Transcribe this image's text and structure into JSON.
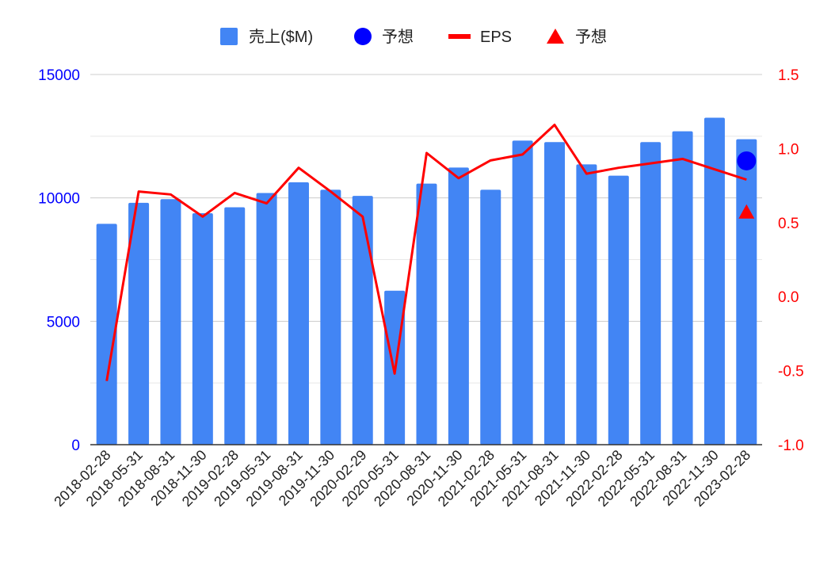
{
  "chart_data": {
    "type": "bar",
    "legend": {
      "position": "top",
      "entries": [
        {
          "label": "売上($M)",
          "marker": "square",
          "color": "#4285F4"
        },
        {
          "label": "予想",
          "marker": "circle",
          "color": "#0000FF"
        },
        {
          "label": "EPS",
          "marker": "line",
          "color": "#FF0000"
        },
        {
          "label": "予想",
          "marker": "triangle",
          "color": "#FF0000"
        }
      ]
    },
    "categories": [
      "2018-02-28",
      "2018-05-31",
      "2018-08-31",
      "2018-11-30",
      "2019-02-28",
      "2019-05-31",
      "2019-08-31",
      "2019-11-30",
      "2020-02-29",
      "2020-05-31",
      "2020-08-31",
      "2020-11-30",
      "2021-02-28",
      "2021-05-31",
      "2021-08-31",
      "2021-11-30",
      "2022-02-28",
      "2022-05-31",
      "2022-08-31",
      "2022-11-30",
      "2023-02-28"
    ],
    "series": [
      {
        "name": "売上($M)",
        "type": "bar",
        "axis": "left",
        "color": "#4285F4",
        "values": [
          8950,
          9800,
          9950,
          9380,
          9620,
          10200,
          10630,
          10330,
          10080,
          6240,
          10580,
          11230,
          10330,
          12320,
          12260,
          11360,
          10900,
          12260,
          12700,
          13250,
          12380
        ]
      },
      {
        "name": "EPS",
        "type": "line",
        "axis": "right",
        "color": "#FF0000",
        "values": [
          -0.57,
          0.71,
          0.69,
          0.54,
          0.7,
          0.63,
          0.87,
          0.71,
          0.54,
          -0.52,
          0.97,
          0.8,
          0.92,
          0.96,
          1.16,
          0.83,
          0.87,
          0.9,
          0.93,
          0.86,
          0.79
        ]
      },
      {
        "name": "予想",
        "type": "scatter",
        "marker": "circle",
        "axis": "left",
        "color": "#0000FF",
        "points": [
          {
            "x": "2023-02-28",
            "y": 11500
          }
        ]
      },
      {
        "name": "予想",
        "type": "scatter",
        "marker": "triangle",
        "axis": "right",
        "color": "#FF0000",
        "points": [
          {
            "x": "2023-02-28",
            "y": 0.57
          }
        ]
      }
    ],
    "y_left": {
      "min": 0,
      "max": 15000,
      "ticks": [
        "0",
        "5000",
        "10000",
        "15000"
      ],
      "tick_values": [
        0,
        5000,
        10000,
        15000
      ],
      "color": "#0000FF"
    },
    "y_right": {
      "min": -1.0,
      "max": 1.5,
      "ticks": [
        "-1.0",
        "-0.5",
        "0.0",
        "0.5",
        "1.0",
        "1.5"
      ],
      "tick_values": [
        -1.0,
        -0.5,
        0.0,
        0.5,
        1.0,
        1.5
      ],
      "color": "#FF0000"
    },
    "grid": true,
    "minor_grid": true
  }
}
